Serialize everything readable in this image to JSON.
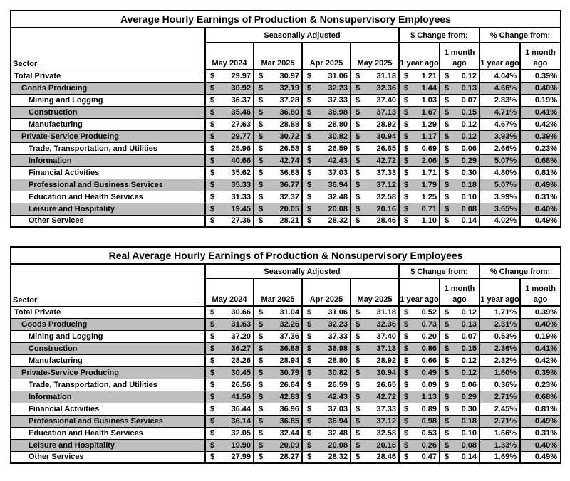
{
  "currency_symbol": "$",
  "colors": {
    "row_shade": "#bfbfbf",
    "border": "#000000",
    "background": "#ffffff",
    "text": "#000000"
  },
  "tables": [
    {
      "title": "Average Hourly Earnings of Production & Nonsupervisory Employees",
      "header": {
        "sector": "Sector",
        "group_months": "Seasonally Adjusted",
        "group_dollar": "$ Change from:",
        "group_percent": "% Change from:",
        "months": [
          "May 2024",
          "Mar 2025",
          "Apr 2025",
          "May 2025"
        ],
        "change_cols": [
          "1 year ago",
          "1 month ago",
          "1 year ago",
          "1 month ago"
        ]
      },
      "rows": [
        {
          "sector": "Total Private",
          "indent": 0,
          "shaded": false,
          "values": [
            "29.97",
            "30.97",
            "31.06",
            "31.18"
          ],
          "dollar_change": [
            "1.21",
            "0.12"
          ],
          "percent_change": [
            "4.04%",
            "0.39%"
          ]
        },
        {
          "sector": "Goods Producing",
          "indent": 1,
          "shaded": true,
          "values": [
            "30.92",
            "32.19",
            "32.23",
            "32.36"
          ],
          "dollar_change": [
            "1.44",
            "0.13"
          ],
          "percent_change": [
            "4.66%",
            "0.40%"
          ]
        },
        {
          "sector": "Mining and Logging",
          "indent": 2,
          "shaded": false,
          "values": [
            "36.37",
            "37.28",
            "37.33",
            "37.40"
          ],
          "dollar_change": [
            "1.03",
            "0.07"
          ],
          "percent_change": [
            "2.83%",
            "0.19%"
          ]
        },
        {
          "sector": "Construction",
          "indent": 2,
          "shaded": true,
          "values": [
            "35.46",
            "36.80",
            "36.98",
            "37.13"
          ],
          "dollar_change": [
            "1.67",
            "0.15"
          ],
          "percent_change": [
            "4.71%",
            "0.41%"
          ]
        },
        {
          "sector": "Manufacturing",
          "indent": 2,
          "shaded": false,
          "values": [
            "27.63",
            "28.88",
            "28.80",
            "28.92"
          ],
          "dollar_change": [
            "1.29",
            "0.12"
          ],
          "percent_change": [
            "4.67%",
            "0.42%"
          ]
        },
        {
          "sector": "Private-Service Producing",
          "indent": 1,
          "shaded": true,
          "values": [
            "29.77",
            "30.72",
            "30.82",
            "30.94"
          ],
          "dollar_change": [
            "1.17",
            "0.12"
          ],
          "percent_change": [
            "3.93%",
            "0.39%"
          ]
        },
        {
          "sector": "Trade, Transportation, and Utilities",
          "indent": 2,
          "shaded": false,
          "values": [
            "25.96",
            "26.58",
            "26.59",
            "26.65"
          ],
          "dollar_change": [
            "0.69",
            "0.06"
          ],
          "percent_change": [
            "2.66%",
            "0.23%"
          ]
        },
        {
          "sector": "Information",
          "indent": 2,
          "shaded": true,
          "values": [
            "40.66",
            "42.74",
            "42.43",
            "42.72"
          ],
          "dollar_change": [
            "2.06",
            "0.29"
          ],
          "percent_change": [
            "5.07%",
            "0.68%"
          ]
        },
        {
          "sector": "Financial Activities",
          "indent": 2,
          "shaded": false,
          "values": [
            "35.62",
            "36.88",
            "37.03",
            "37.33"
          ],
          "dollar_change": [
            "1.71",
            "0.30"
          ],
          "percent_change": [
            "4.80%",
            "0.81%"
          ]
        },
        {
          "sector": "Professional and Business Services",
          "indent": 2,
          "shaded": true,
          "values": [
            "35.33",
            "36.77",
            "36.94",
            "37.12"
          ],
          "dollar_change": [
            "1.79",
            "0.18"
          ],
          "percent_change": [
            "5.07%",
            "0.49%"
          ]
        },
        {
          "sector": "Education and Health Services",
          "indent": 2,
          "shaded": false,
          "values": [
            "31.33",
            "32.37",
            "32.48",
            "32.58"
          ],
          "dollar_change": [
            "1.25",
            "0.10"
          ],
          "percent_change": [
            "3.99%",
            "0.31%"
          ]
        },
        {
          "sector": "Leisure and Hospitality",
          "indent": 2,
          "shaded": true,
          "values": [
            "19.45",
            "20.05",
            "20.08",
            "20.16"
          ],
          "dollar_change": [
            "0.71",
            "0.08"
          ],
          "percent_change": [
            "3.65%",
            "0.40%"
          ]
        },
        {
          "sector": "Other Services",
          "indent": 2,
          "shaded": false,
          "values": [
            "27.36",
            "28.21",
            "28.32",
            "28.46"
          ],
          "dollar_change": [
            "1.10",
            "0.14"
          ],
          "percent_change": [
            "4.02%",
            "0.49%"
          ]
        }
      ]
    },
    {
      "title": "Real Average Hourly Earnings of Production & Nonsupervisory Employees",
      "header": {
        "sector": "Sector",
        "group_months": "Seasonally Adjusted",
        "group_dollar": "$ Change from:",
        "group_percent": "% Change from:",
        "months": [
          "May 2024",
          "Mar 2025",
          "Apr 2025",
          "May 2025"
        ],
        "change_cols": [
          "1 year ago",
          "1 month ago",
          "1 year ago",
          "1 month ago"
        ]
      },
      "rows": [
        {
          "sector": "Total Private",
          "indent": 0,
          "shaded": false,
          "values": [
            "30.66",
            "31.04",
            "31.06",
            "31.18"
          ],
          "dollar_change": [
            "0.52",
            "0.12"
          ],
          "percent_change": [
            "1.71%",
            "0.39%"
          ]
        },
        {
          "sector": "Goods Producing",
          "indent": 1,
          "shaded": true,
          "values": [
            "31.63",
            "32.26",
            "32.23",
            "32.36"
          ],
          "dollar_change": [
            "0.73",
            "0.13"
          ],
          "percent_change": [
            "2.31%",
            "0.40%"
          ]
        },
        {
          "sector": "Mining and Logging",
          "indent": 2,
          "shaded": false,
          "values": [
            "37.20",
            "37.36",
            "37.33",
            "37.40"
          ],
          "dollar_change": [
            "0.20",
            "0.07"
          ],
          "percent_change": [
            "0.53%",
            "0.19%"
          ]
        },
        {
          "sector": "Construction",
          "indent": 2,
          "shaded": true,
          "values": [
            "36.27",
            "36.88",
            "36.98",
            "37.13"
          ],
          "dollar_change": [
            "0.86",
            "0.15"
          ],
          "percent_change": [
            "2.36%",
            "0.41%"
          ]
        },
        {
          "sector": "Manufacturing",
          "indent": 2,
          "shaded": false,
          "values": [
            "28.26",
            "28.94",
            "28.80",
            "28.92"
          ],
          "dollar_change": [
            "0.66",
            "0.12"
          ],
          "percent_change": [
            "2.32%",
            "0.42%"
          ]
        },
        {
          "sector": "Private-Service Producing",
          "indent": 1,
          "shaded": true,
          "values": [
            "30.45",
            "30.79",
            "30.82",
            "30.94"
          ],
          "dollar_change": [
            "0.49",
            "0.12"
          ],
          "percent_change": [
            "1.60%",
            "0.39%"
          ]
        },
        {
          "sector": "Trade, Transportation, and Utilities",
          "indent": 2,
          "shaded": false,
          "values": [
            "26.56",
            "26.64",
            "26.59",
            "26.65"
          ],
          "dollar_change": [
            "0.09",
            "0.06"
          ],
          "percent_change": [
            "0.36%",
            "0.23%"
          ]
        },
        {
          "sector": "Information",
          "indent": 2,
          "shaded": true,
          "values": [
            "41.59",
            "42.83",
            "42.43",
            "42.72"
          ],
          "dollar_change": [
            "1.13",
            "0.29"
          ],
          "percent_change": [
            "2.71%",
            "0.68%"
          ]
        },
        {
          "sector": "Financial Activities",
          "indent": 2,
          "shaded": false,
          "values": [
            "36.44",
            "36.96",
            "37.03",
            "37.33"
          ],
          "dollar_change": [
            "0.89",
            "0.30"
          ],
          "percent_change": [
            "2.45%",
            "0.81%"
          ]
        },
        {
          "sector": "Professional and Business Services",
          "indent": 2,
          "shaded": true,
          "values": [
            "36.14",
            "36.85",
            "36.94",
            "37.12"
          ],
          "dollar_change": [
            "0.98",
            "0.18"
          ],
          "percent_change": [
            "2.71%",
            "0.49%"
          ]
        },
        {
          "sector": "Education and Health Services",
          "indent": 2,
          "shaded": false,
          "values": [
            "32.05",
            "32.44",
            "32.48",
            "32.58"
          ],
          "dollar_change": [
            "0.53",
            "0.10"
          ],
          "percent_change": [
            "1.66%",
            "0.31%"
          ]
        },
        {
          "sector": "Leisure and Hospitality",
          "indent": 2,
          "shaded": true,
          "values": [
            "19.90",
            "20.09",
            "20.08",
            "20.16"
          ],
          "dollar_change": [
            "0.26",
            "0.08"
          ],
          "percent_change": [
            "1.33%",
            "0.40%"
          ]
        },
        {
          "sector": "Other Services",
          "indent": 2,
          "shaded": false,
          "values": [
            "27.99",
            "28.27",
            "28.32",
            "28.46"
          ],
          "dollar_change": [
            "0.47",
            "0.14"
          ],
          "percent_change": [
            "1.69%",
            "0.49%"
          ]
        }
      ]
    }
  ]
}
